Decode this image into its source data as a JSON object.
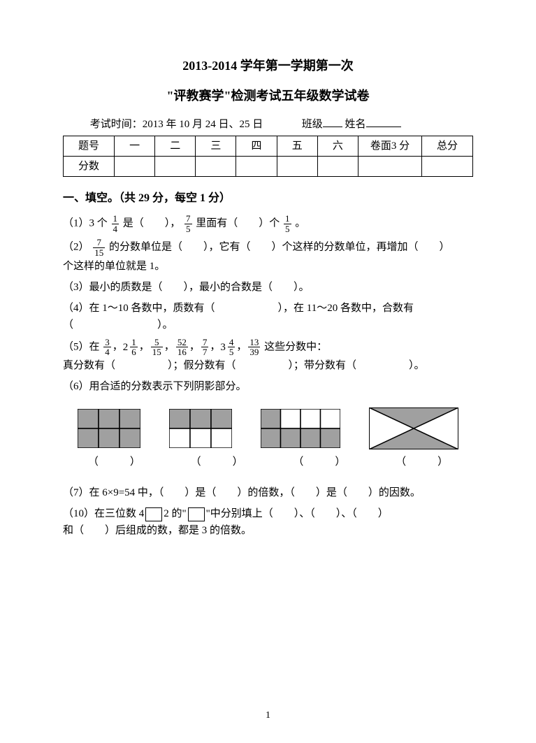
{
  "title_line1": "2013-2014 学年第一学期第一次",
  "title_line2": "\"评教赛学\"检测考试五年级数学试卷",
  "info_prefix": "考试时间：2013 年 10 月 24 日、25 日",
  "info_class": "班级",
  "info_name": "姓名",
  "table": {
    "rowA": [
      "题号",
      "一",
      "二",
      "三",
      "四",
      "五",
      "六",
      "卷面3 分",
      "总分"
    ],
    "rowB_label": "分数"
  },
  "section1_head": "一、填空。（共 29 分，每空 1 分）",
  "q1": {
    "a": "（1）3 个",
    "f1": {
      "n": "1",
      "d": "4"
    },
    "b": "是（　　），",
    "f2": {
      "n": "7",
      "d": "5"
    },
    "c": "里面有（　　）个",
    "f3": {
      "n": "1",
      "d": "5"
    },
    "d": "。"
  },
  "q2": {
    "a": "（2）",
    "f1": {
      "n": "7",
      "d": "15"
    },
    "b": "的分数单位是（　　），它有（　　）个这样的分数单位，再增加（　　）",
    "c": "个这样的单位就是 1。"
  },
  "q3": "（3）最小的质数是（　　），最小的合数是（　　）。",
  "q4": {
    "a": "（4）在 1～10 各数中，质数有（　　　　　　），在 11～20 各数中，合数有",
    "b": "（　　　　　　　　）。"
  },
  "q5": {
    "a": "（5）在",
    "terms": [
      {
        "n": "3",
        "d": "4"
      },
      {
        "w": "2",
        "n": "1",
        "d": "6"
      },
      {
        "n": "5",
        "d": "15"
      },
      {
        "n": "52",
        "d": "16"
      },
      {
        "n": "7",
        "d": "7"
      },
      {
        "w": "3",
        "n": "4",
        "d": "5"
      },
      {
        "n": "13",
        "d": "39"
      }
    ],
    "b": "这些分数中：",
    "c": "真分数有（　　　　　）；假分数有（　　　　　）；带分数有（　　　　　）。"
  },
  "q6_head": "（6）用合适的分数表示下列阴影部分。",
  "paren": "（　　　）",
  "q7": "（7）在 6×9=54 中，（　　）是（　　）的倍数，（　　）是（　　）的因数。",
  "q10": {
    "a": "（10）在三位数 4",
    "b": "2 的\"",
    "c": "\"中分别填上（　　）、（　　）、（　　）",
    "d": "和（　　）后组成的数，都是 3 的倍数。"
  },
  "pagenum": "1",
  "diagrams": {
    "grid_stroke": "#000000",
    "shade": "#a0a0a0",
    "d1": {
      "w": 90,
      "h": 56,
      "cols": 3,
      "rows": 2,
      "shaded_cells": [
        0,
        1,
        2,
        3,
        4,
        5
      ]
    },
    "d2": {
      "w": 90,
      "h": 56,
      "cols": 3,
      "rows": 2,
      "shaded_cells": [
        0,
        1,
        2
      ]
    },
    "d3": {
      "w": 114,
      "h": 56,
      "cols": 4,
      "rows": 2,
      "shaded_cells": [
        0,
        4,
        5,
        6,
        7
      ]
    },
    "d4": {
      "w": 128,
      "h": 60
    }
  }
}
